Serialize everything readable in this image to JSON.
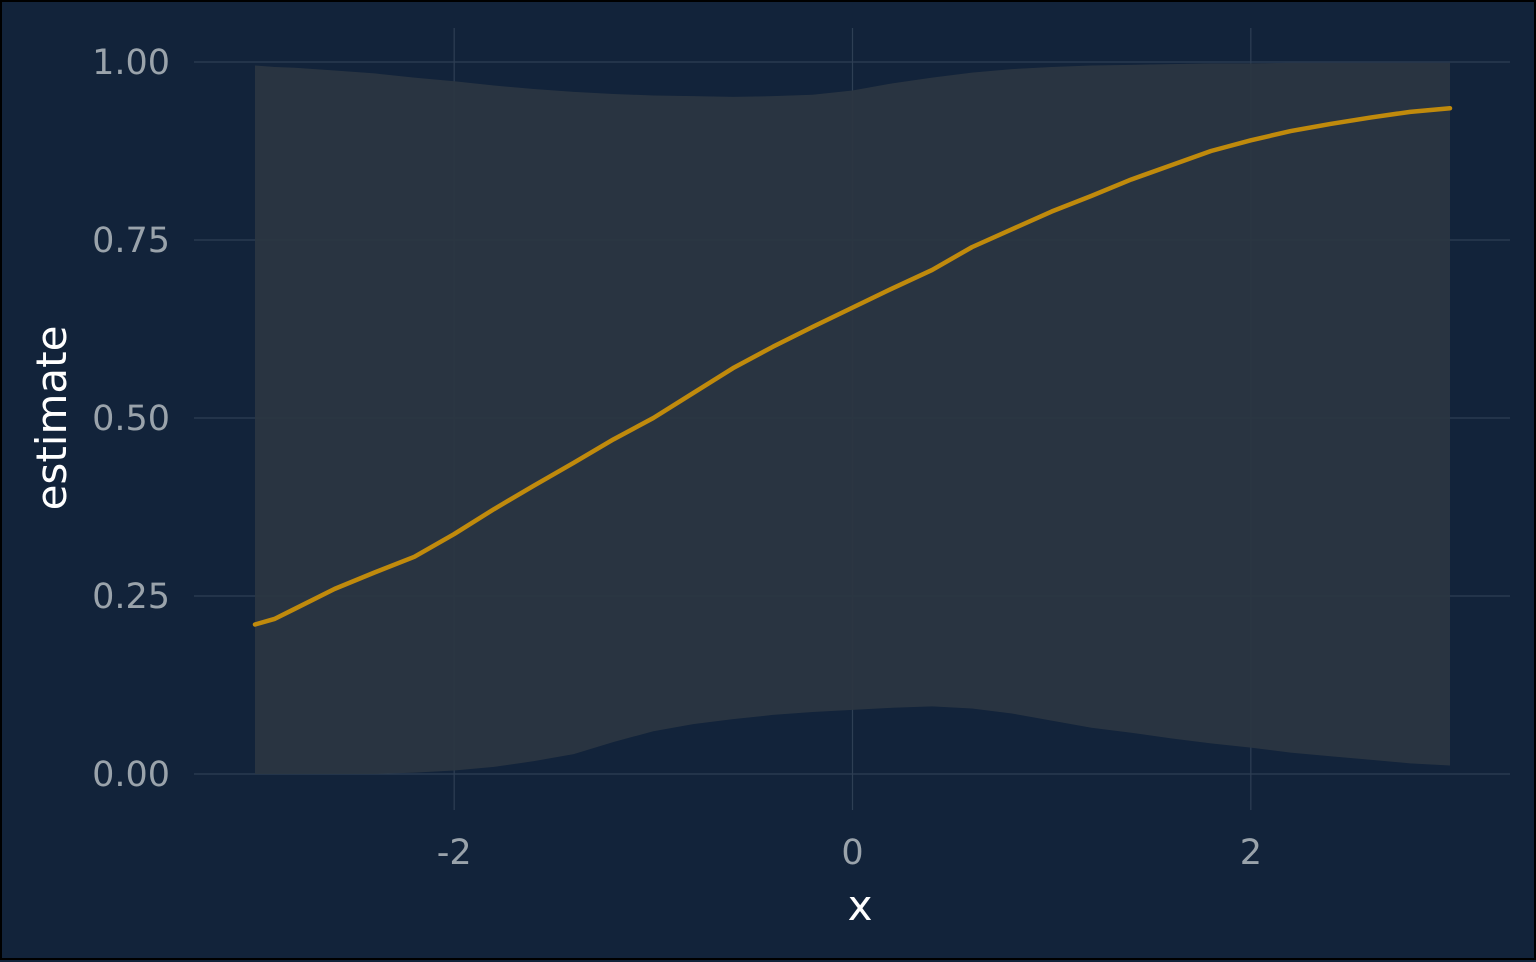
{
  "colors": {
    "background": "#12233a",
    "grid": "#2e3f54",
    "ribbon": "#2b3641",
    "line": "#c08a0c",
    "tick_text": "#9aa3ab",
    "title_text": "#ffffff"
  },
  "chart_data": {
    "type": "line",
    "title": "",
    "xlabel": "x",
    "ylabel": "estimate",
    "xlim": [
      -3.0,
      3.0
    ],
    "ylim": [
      0,
      1
    ],
    "x_ticks": [
      -2,
      0,
      2
    ],
    "x_tick_labels": [
      "-2",
      "0",
      "2"
    ],
    "y_ticks": [
      0,
      0.25,
      0.5,
      0.75,
      1
    ],
    "y_tick_labels": [
      "0.00",
      "0.25",
      "0.50",
      "0.75",
      "1.00"
    ],
    "grid": true,
    "legend": "none",
    "series": [
      {
        "x": [
          -3.0,
          -2.9,
          -2.8,
          -2.6,
          -2.4,
          -2.2,
          -2.0,
          -1.8,
          -1.6,
          -1.4,
          -1.2,
          -1.0,
          -0.8,
          -0.6,
          -0.4,
          -0.2,
          0.0,
          0.2,
          0.4,
          0.6,
          0.8,
          1.0,
          1.2,
          1.4,
          1.6,
          1.8,
          2.0,
          2.2,
          2.4,
          2.6,
          2.8,
          3.0
        ],
        "y": [
          0.21,
          0.218,
          0.232,
          0.26,
          0.283,
          0.305,
          0.337,
          0.372,
          0.405,
          0.437,
          0.47,
          0.5,
          0.535,
          0.57,
          0.6,
          0.628,
          0.655,
          0.682,
          0.708,
          0.74,
          0.765,
          0.79,
          0.812,
          0.835,
          0.855,
          0.875,
          0.89,
          0.903,
          0.913,
          0.922,
          0.93,
          0.935
        ],
        "lower": [
          0.0,
          0.0,
          0.0,
          0.0,
          0.0,
          0.002,
          0.005,
          0.01,
          0.018,
          0.028,
          0.045,
          0.06,
          0.07,
          0.077,
          0.083,
          0.087,
          0.09,
          0.093,
          0.095,
          0.092,
          0.085,
          0.075,
          0.065,
          0.058,
          0.05,
          0.043,
          0.037,
          0.03,
          0.025,
          0.02,
          0.015,
          0.012
        ],
        "upper": [
          0.995,
          0.993,
          0.992,
          0.988,
          0.984,
          0.978,
          0.973,
          0.967,
          0.962,
          0.958,
          0.955,
          0.953,
          0.952,
          0.951,
          0.952,
          0.954,
          0.96,
          0.97,
          0.978,
          0.985,
          0.99,
          0.993,
          0.995,
          0.996,
          0.997,
          0.998,
          0.998,
          0.999,
          0.999,
          0.999,
          0.999,
          0.999
        ]
      }
    ]
  }
}
